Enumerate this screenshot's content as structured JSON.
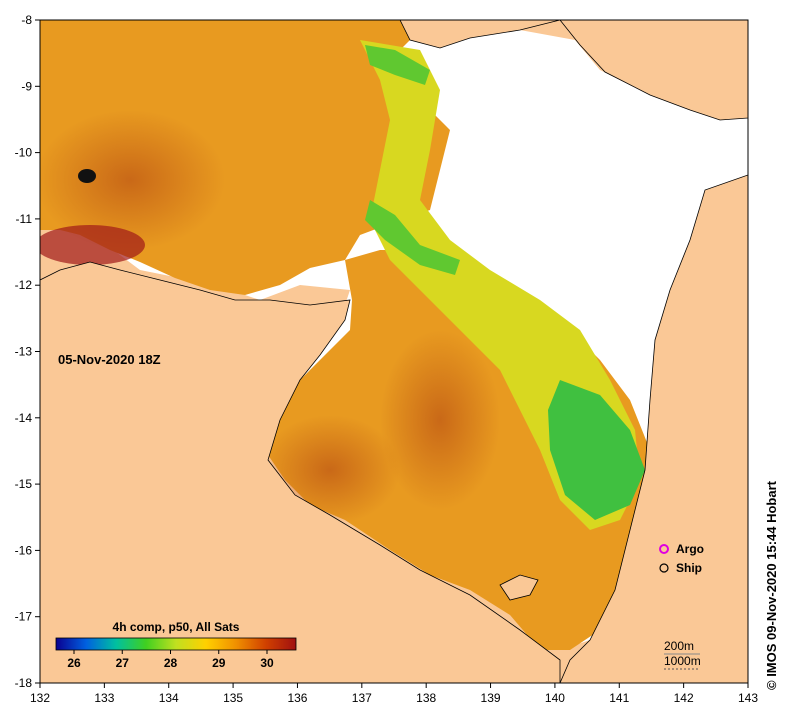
{
  "map": {
    "date_label": "05-Nov-2020 18Z",
    "credit": "© IMOS 09-Nov-2020 15:44 Hobart",
    "x_axis": {
      "ticks": [
        "132",
        "133",
        "134",
        "135",
        "136",
        "137",
        "138",
        "139",
        "140",
        "141",
        "142",
        "143"
      ]
    },
    "y_axis": {
      "ticks": [
        "-8",
        "-9",
        "-10",
        "-11",
        "-12",
        "-13",
        "-14",
        "-15",
        "-16",
        "-17",
        "-18"
      ]
    },
    "colorbar": {
      "title": "4h comp, p50, All Sats",
      "ticks": [
        "26",
        "27",
        "28",
        "29",
        "30"
      ],
      "colors": [
        "#0a0090",
        "#0060e0",
        "#00c0a0",
        "#40d020",
        "#c0e020",
        "#ffd000",
        "#f09000",
        "#d04000",
        "#a01010"
      ]
    },
    "legend": {
      "items": [
        {
          "label": "Argo",
          "color": "#e000e0"
        },
        {
          "label": "Ship",
          "color": "#000000"
        }
      ]
    },
    "contour_legend": {
      "labels": [
        "200m",
        "1000m"
      ]
    },
    "colors": {
      "land": "#fac896",
      "no_data": "#ffffff",
      "coast": "#000000"
    }
  }
}
